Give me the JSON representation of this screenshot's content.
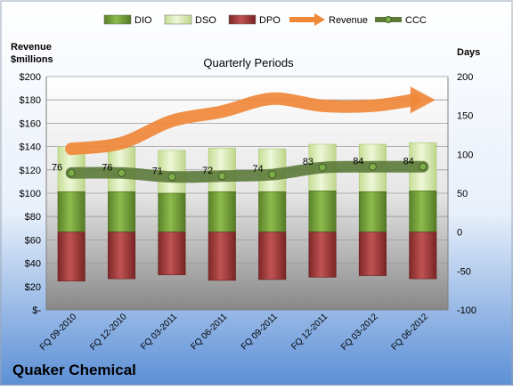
{
  "chart_data": {
    "type": "bar",
    "title": "Quarterly Periods",
    "company": "Quaker Chemical",
    "left_axis_label_line1": "Revenue",
    "left_axis_label_line2": "$millions",
    "right_axis_label": "Days",
    "categories": [
      "FQ 09-2010",
      "FQ 12-2010",
      "FQ 03-2011",
      "FQ 06-2011",
      "FQ 09-2011",
      "FQ 12-2011",
      "FQ 03-2012",
      "FQ 06-2012"
    ],
    "left_ylim": [
      0,
      200
    ],
    "left_ticks": [
      "$-",
      "$20",
      "$40",
      "$60",
      "$80",
      "$100",
      "$120",
      "$140",
      "$160",
      "$180",
      "$200"
    ],
    "right_ylim": [
      -100,
      200
    ],
    "right_ticks": [
      "-100",
      "-50",
      "0",
      "50",
      "100",
      "150",
      "200"
    ],
    "legend": [
      "DIO",
      "DSO",
      "DPO",
      "Revenue",
      "CCC"
    ],
    "legend_position": "top",
    "series": [
      {
        "name": "DIO",
        "axis": "right",
        "values": [
          52,
          52,
          50,
          52,
          52,
          53,
          52,
          53
        ]
      },
      {
        "name": "DSO",
        "axis": "right",
        "values": [
          58,
          57,
          55,
          56,
          55,
          60,
          61,
          62
        ]
      },
      {
        "name": "DPO",
        "axis": "right",
        "values": [
          -63,
          -60,
          -55,
          -62,
          -61,
          -58,
          -56,
          -60
        ]
      },
      {
        "name": "Revenue",
        "axis": "left",
        "values": [
          138,
          143,
          162,
          170,
          181,
          175,
          175,
          180
        ]
      },
      {
        "name": "CCC",
        "axis": "right",
        "values": [
          76,
          76,
          71,
          72,
          74,
          83,
          84,
          84
        ]
      }
    ],
    "ccc_labels": [
      "76",
      "76",
      "71",
      "72",
      "74",
      "83",
      "84",
      "84"
    ],
    "colors": {
      "DIO": "#6f9a36",
      "DSO": "#d8ebb0",
      "DPO": "#9e3737",
      "Revenue": "#f0883a",
      "CCC": "#5c7a3a"
    },
    "grid": true
  }
}
